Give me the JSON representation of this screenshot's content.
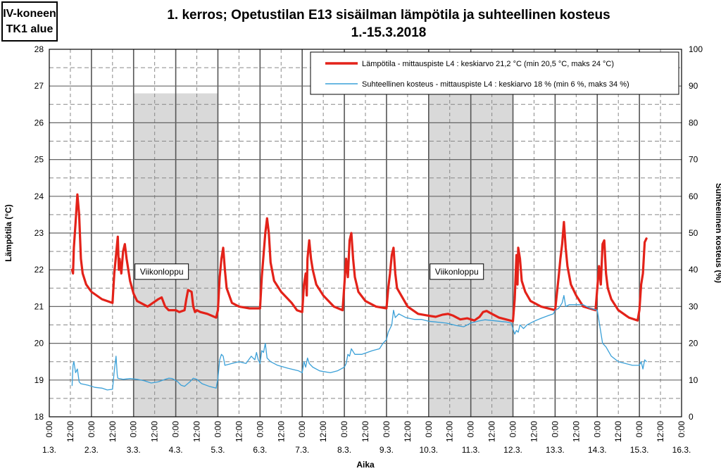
{
  "corner_label": {
    "line1": "IV-koneen",
    "line2": "TK1 alue"
  },
  "chart_data": {
    "type": "line",
    "title": "1. kerros;   Opetustilan E13 sisäilman lämpötila ja suhteellinen kosteus",
    "subtitle": "1.-15.3.2018",
    "xlabel": "Aika",
    "ylabel_left": "Lämpötila (°C)",
    "ylabel_right": "Suhteellinen kosteus (%)",
    "ylim_left": [
      18,
      28
    ],
    "yticks_left": [
      18,
      19,
      20,
      21,
      22,
      23,
      24,
      25,
      26,
      27,
      28
    ],
    "ylim_right": [
      0,
      100
    ],
    "yticks_right": [
      0,
      10,
      20,
      30,
      40,
      50,
      60,
      70,
      80,
      90,
      100
    ],
    "xlim_hours": [
      0,
      360
    ],
    "time_tick_labels": [
      "0:00",
      "12:00",
      "0:00",
      "12:00",
      "0:00",
      "12:00",
      "0:00",
      "12:00",
      "0:00",
      "12:00",
      "0:00",
      "12:00",
      "0:00",
      "12:00",
      "0:00",
      "12:00",
      "0:00",
      "12:00",
      "0:00",
      "12:00",
      "0:00",
      "12:00",
      "0:00",
      "12:00",
      "0:00",
      "12:00",
      "0:00",
      "12:00",
      "0:00",
      "12:00",
      "0:00"
    ],
    "date_labels": [
      "1.3.",
      "2.3.",
      "3.3.",
      "4.3.",
      "5.3.",
      "6.3.",
      "7.3.",
      "8.3.",
      "9.3.",
      "10.3.",
      "11.3.",
      "12.3.",
      "13.3.",
      "14.3.",
      "15.3.",
      "16.3."
    ],
    "grid": true,
    "legend_position": "top-right",
    "weekend_label": "Viikonloppu",
    "weekends": [
      {
        "start_hours": 48,
        "end_hours": 96,
        "label_hours": 64,
        "label_temp": 21.95
      },
      {
        "start_hours": 216,
        "end_hours": 264,
        "label_hours": 232,
        "label_temp": 21.95
      }
    ],
    "series": [
      {
        "name": "Lämpötila - mittauspiste L4 : keskiarvo 21,2 °C (min 20,5 °C, maks 24 °C)",
        "axis": "left",
        "color": "#e32219",
        "points": [
          [
            13,
            22.0
          ],
          [
            13.5,
            21.9
          ],
          [
            14,
            22.6
          ],
          [
            15,
            23.3
          ],
          [
            16,
            24.05
          ],
          [
            17,
            23.5
          ],
          [
            18,
            22.3
          ],
          [
            19,
            21.9
          ],
          [
            21,
            21.6
          ],
          [
            24,
            21.4
          ],
          [
            30,
            21.2
          ],
          [
            36,
            21.1
          ],
          [
            37,
            21.9
          ],
          [
            38,
            22.4
          ],
          [
            39,
            22.9
          ],
          [
            39.6,
            22.0
          ],
          [
            40,
            22.3
          ],
          [
            41,
            21.9
          ],
          [
            42,
            22.5
          ],
          [
            43,
            22.7
          ],
          [
            44,
            22.3
          ],
          [
            46,
            21.7
          ],
          [
            48,
            21.35
          ],
          [
            50,
            21.15
          ],
          [
            56,
            21.0
          ],
          [
            59,
            21.1
          ],
          [
            62,
            21.2
          ],
          [
            64,
            21.25
          ],
          [
            66,
            21.0
          ],
          [
            68,
            20.9
          ],
          [
            72,
            20.9
          ],
          [
            74,
            20.85
          ],
          [
            77,
            20.9
          ],
          [
            78,
            21.2
          ],
          [
            79,
            21.45
          ],
          [
            81,
            21.4
          ],
          [
            82,
            21.0
          ],
          [
            83,
            20.85
          ],
          [
            84,
            20.9
          ],
          [
            86,
            20.85
          ],
          [
            90,
            20.8
          ],
          [
            95,
            20.7
          ],
          [
            96,
            20.9
          ],
          [
            97,
            21.8
          ],
          [
            98,
            22.3
          ],
          [
            99,
            22.6
          ],
          [
            100,
            22.0
          ],
          [
            101,
            21.5
          ],
          [
            104,
            21.1
          ],
          [
            108,
            21.0
          ],
          [
            114,
            20.95
          ],
          [
            120,
            20.95
          ],
          [
            121,
            21.8
          ],
          [
            122,
            22.4
          ],
          [
            123,
            23.0
          ],
          [
            124,
            23.4
          ],
          [
            125,
            23.0
          ],
          [
            126,
            22.2
          ],
          [
            128,
            21.7
          ],
          [
            132,
            21.4
          ],
          [
            138,
            21.1
          ],
          [
            141,
            20.9
          ],
          [
            144,
            20.85
          ],
          [
            145,
            21.6
          ],
          [
            146,
            21.9
          ],
          [
            146.6,
            21.3
          ],
          [
            147,
            22.3
          ],
          [
            148,
            22.8
          ],
          [
            149,
            22.3
          ],
          [
            150,
            22.0
          ],
          [
            152,
            21.6
          ],
          [
            156,
            21.3
          ],
          [
            162,
            21.0
          ],
          [
            167,
            20.9
          ],
          [
            168,
            21.6
          ],
          [
            169,
            22.3
          ],
          [
            170,
            21.8
          ],
          [
            171,
            22.8
          ],
          [
            172,
            23.0
          ],
          [
            173,
            22.3
          ],
          [
            174,
            21.8
          ],
          [
            176,
            21.4
          ],
          [
            180,
            21.15
          ],
          [
            186,
            21.0
          ],
          [
            192,
            20.95
          ],
          [
            193,
            21.5
          ],
          [
            194,
            21.9
          ],
          [
            195,
            22.4
          ],
          [
            196,
            22.6
          ],
          [
            197,
            21.9
          ],
          [
            198,
            21.5
          ],
          [
            204,
            21.0
          ],
          [
            210,
            20.8
          ],
          [
            216,
            20.75
          ],
          [
            220,
            20.72
          ],
          [
            224,
            20.78
          ],
          [
            227,
            20.8
          ],
          [
            230,
            20.75
          ],
          [
            234,
            20.65
          ],
          [
            238,
            20.68
          ],
          [
            242,
            20.62
          ],
          [
            245,
            20.72
          ],
          [
            247,
            20.85
          ],
          [
            249,
            20.88
          ],
          [
            252,
            20.8
          ],
          [
            256,
            20.7
          ],
          [
            260,
            20.65
          ],
          [
            264,
            20.6
          ],
          [
            265,
            21.2
          ],
          [
            266,
            22.4
          ],
          [
            266.6,
            21.6
          ],
          [
            267,
            22.6
          ],
          [
            268,
            22.3
          ],
          [
            269,
            21.7
          ],
          [
            271,
            21.4
          ],
          [
            274,
            21.15
          ],
          [
            280,
            21.0
          ],
          [
            288,
            20.9
          ],
          [
            290,
            21.8
          ],
          [
            291,
            22.3
          ],
          [
            292,
            22.7
          ],
          [
            293,
            23.3
          ],
          [
            294,
            22.6
          ],
          [
            295,
            22.1
          ],
          [
            297,
            21.6
          ],
          [
            300,
            21.3
          ],
          [
            304,
            21.0
          ],
          [
            311,
            20.9
          ],
          [
            312,
            21.5
          ],
          [
            313,
            22.1
          ],
          [
            314,
            21.6
          ],
          [
            315,
            22.7
          ],
          [
            316,
            22.8
          ],
          [
            317,
            21.9
          ],
          [
            318,
            21.5
          ],
          [
            320,
            21.2
          ],
          [
            324,
            20.9
          ],
          [
            330,
            20.7
          ],
          [
            335,
            20.62
          ],
          [
            336,
            20.9
          ],
          [
            337,
            21.6
          ],
          [
            338,
            21.9
          ],
          [
            339,
            22.75
          ],
          [
            340,
            22.85
          ]
        ]
      },
      {
        "name": "Suhteellinen kosteus - mittauspiste L4 : keskiarvo 18 % (min 6 %, maks 34 %)",
        "axis": "right",
        "color": "#3aa0d8",
        "points": [
          [
            13,
            8.5
          ],
          [
            13.5,
            14
          ],
          [
            14,
            15
          ],
          [
            15,
            12
          ],
          [
            16,
            13
          ],
          [
            17,
            9.5
          ],
          [
            18,
            9
          ],
          [
            22,
            8.6
          ],
          [
            26,
            8
          ],
          [
            30,
            7.8
          ],
          [
            33,
            7.3
          ],
          [
            36,
            7.5
          ],
          [
            37,
            12.5
          ],
          [
            38,
            16.5
          ],
          [
            38.7,
            11.5
          ],
          [
            39,
            10.5
          ],
          [
            42,
            10.2
          ],
          [
            46,
            10.4
          ],
          [
            50,
            10.2
          ],
          [
            54,
            9.8
          ],
          [
            58,
            9.2
          ],
          [
            62,
            9.5
          ],
          [
            66,
            10.2
          ],
          [
            68,
            10.5
          ],
          [
            70,
            10.4
          ],
          [
            73,
            9.6
          ],
          [
            75,
            8.6
          ],
          [
            77,
            8.3
          ],
          [
            80,
            9.5
          ],
          [
            82,
            10.5
          ],
          [
            84,
            10.2
          ],
          [
            87,
            9.0
          ],
          [
            91,
            8.3
          ],
          [
            95,
            7.8
          ],
          [
            96,
            10.5
          ],
          [
            97,
            15.5
          ],
          [
            98,
            17
          ],
          [
            99,
            16.5
          ],
          [
            100,
            14
          ],
          [
            104,
            14.5
          ],
          [
            108,
            15
          ],
          [
            112,
            14.5
          ],
          [
            115,
            16.5
          ],
          [
            117,
            15.5
          ],
          [
            118,
            17.5
          ],
          [
            119,
            15.5
          ],
          [
            120,
            14.5
          ],
          [
            121,
            18
          ],
          [
            122,
            17.5
          ],
          [
            123,
            20
          ],
          [
            124,
            16
          ],
          [
            126,
            15
          ],
          [
            130,
            14
          ],
          [
            136,
            13.2
          ],
          [
            142,
            12.5
          ],
          [
            144,
            12
          ],
          [
            145,
            15
          ],
          [
            146,
            13.5
          ],
          [
            147,
            16
          ],
          [
            148,
            14.5
          ],
          [
            150,
            13.5
          ],
          [
            154,
            12.5
          ],
          [
            160,
            12
          ],
          [
            164,
            12.5
          ],
          [
            168,
            13.5
          ],
          [
            169,
            14.5
          ],
          [
            170,
            17
          ],
          [
            171,
            16.5
          ],
          [
            172,
            18.5
          ],
          [
            174,
            17
          ],
          [
            178,
            17
          ],
          [
            184,
            18
          ],
          [
            188,
            18.5
          ],
          [
            190,
            20
          ],
          [
            192,
            21
          ],
          [
            193,
            23
          ],
          [
            195,
            25
          ],
          [
            196,
            29
          ],
          [
            197,
            27
          ],
          [
            199,
            28
          ],
          [
            203,
            27
          ],
          [
            208,
            26.5
          ],
          [
            212,
            26.5
          ],
          [
            216,
            26
          ],
          [
            220,
            25.8
          ],
          [
            226,
            25.5
          ],
          [
            232,
            24.8
          ],
          [
            236,
            24.5
          ],
          [
            240,
            25.5
          ],
          [
            244,
            26
          ],
          [
            248,
            26.4
          ],
          [
            252,
            26.2
          ],
          [
            256,
            26
          ],
          [
            260,
            25.8
          ],
          [
            263,
            25.5
          ],
          [
            264,
            24
          ],
          [
            265,
            22.5
          ],
          [
            266,
            23.5
          ],
          [
            267,
            23
          ],
          [
            268,
            25
          ],
          [
            269,
            24.5
          ],
          [
            270,
            24
          ],
          [
            272,
            25
          ],
          [
            276,
            26
          ],
          [
            280,
            26.8
          ],
          [
            284,
            27.5
          ],
          [
            287,
            28
          ],
          [
            288,
            29
          ],
          [
            290,
            29.5
          ],
          [
            292,
            31
          ],
          [
            293,
            33
          ],
          [
            294,
            30
          ],
          [
            296,
            30.5
          ],
          [
            300,
            30.5
          ],
          [
            304,
            30.5
          ],
          [
            308,
            29.5
          ],
          [
            312,
            29
          ],
          [
            313,
            26
          ],
          [
            315,
            20
          ],
          [
            317,
            19
          ],
          [
            320,
            16.5
          ],
          [
            324,
            15
          ],
          [
            328,
            14.5
          ],
          [
            332,
            14
          ],
          [
            336,
            14
          ],
          [
            337,
            15
          ],
          [
            338,
            13
          ],
          [
            339,
            15.5
          ],
          [
            340,
            15
          ]
        ]
      }
    ]
  }
}
